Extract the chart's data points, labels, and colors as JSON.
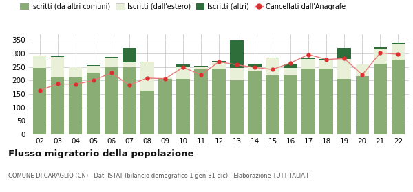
{
  "years": [
    "02",
    "03",
    "04",
    "05",
    "06",
    "07",
    "08",
    "09",
    "10",
    "11",
    "12",
    "13",
    "14",
    "15",
    "16",
    "17",
    "18",
    "19",
    "20",
    "21",
    "22"
  ],
  "iscritti_comuni": [
    247,
    213,
    211,
    228,
    250,
    250,
    163,
    207,
    206,
    245,
    243,
    202,
    235,
    218,
    219,
    244,
    244,
    207,
    215,
    263,
    278
  ],
  "iscritti_estero": [
    42,
    75,
    38,
    27,
    33,
    18,
    105,
    3,
    45,
    3,
    26,
    45,
    15,
    65,
    27,
    36,
    34,
    73,
    43,
    55,
    58
  ],
  "iscritti_altri": [
    3,
    1,
    1,
    1,
    3,
    52,
    2,
    1,
    8,
    7,
    2,
    100,
    12,
    1,
    17,
    5,
    1,
    40,
    1,
    5,
    5
  ],
  "cancellati": [
    163,
    187,
    186,
    200,
    228,
    183,
    209,
    206,
    249,
    221,
    269,
    258,
    248,
    241,
    265,
    296,
    278,
    281,
    221,
    302,
    297
  ],
  "color_comuni": "#8aad76",
  "color_estero": "#e8f0d8",
  "color_altri": "#2d6e3a",
  "color_cancellati": "#d93030",
  "color_line": "#e87878",
  "bg_color": "#ffffff",
  "grid_color": "#cccccc",
  "title": "Flusso migratorio della popolazione",
  "subtitle": "COMUNE DI CARAGLIO (CN) - Dati ISTAT (bilancio demografico 1 gen-31 dic) - Elaborazione TUTTITALIA.IT",
  "legend_labels": [
    "Iscritti (da altri comuni)",
    "Iscritti (dall'estero)",
    "Iscritti (altri)",
    "Cancellati dall'Anagrafe"
  ],
  "ylim": [
    0,
    370
  ],
  "yticks": [
    0,
    50,
    100,
    150,
    200,
    250,
    300,
    350
  ]
}
